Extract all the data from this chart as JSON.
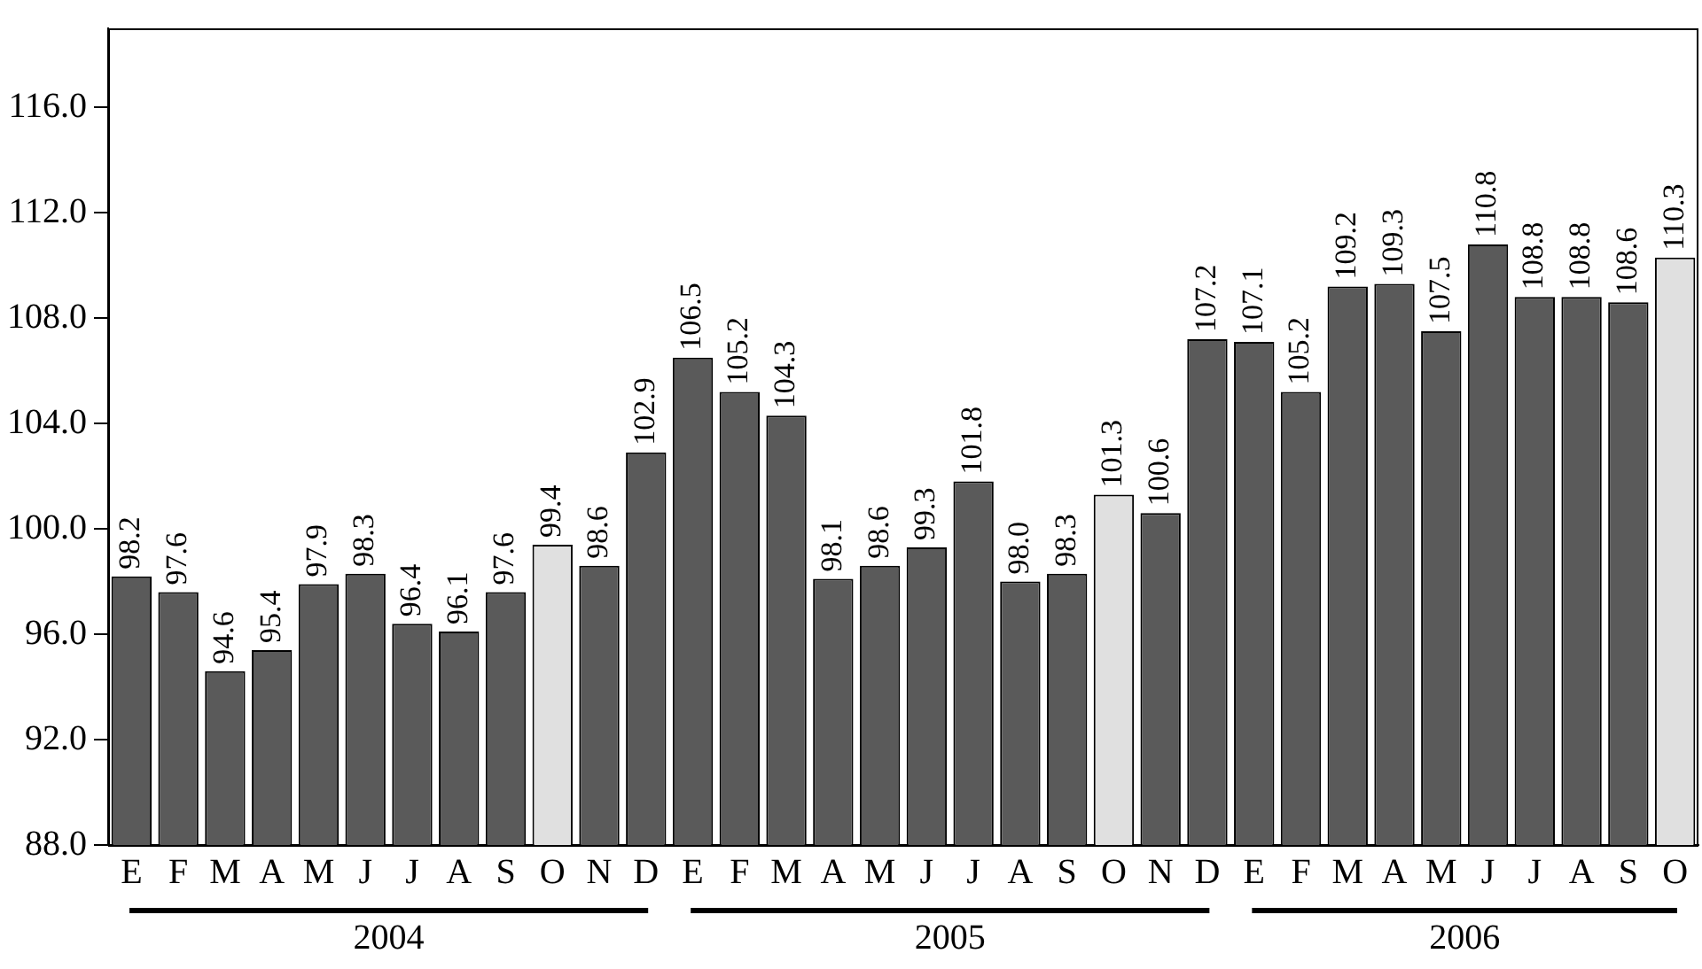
{
  "chart_data": {
    "type": "bar",
    "categories": [
      "E",
      "F",
      "M",
      "A",
      "M",
      "J",
      "J",
      "A",
      "S",
      "O",
      "N",
      "D",
      "E",
      "F",
      "M",
      "A",
      "M",
      "J",
      "J",
      "A",
      "S",
      "O",
      "N",
      "D",
      "E",
      "F",
      "M",
      "A",
      "M",
      "J",
      "J",
      "A",
      "S",
      "O"
    ],
    "values": [
      98.2,
      97.6,
      94.6,
      95.4,
      97.9,
      98.3,
      96.4,
      96.1,
      97.6,
      99.4,
      98.6,
      102.9,
      106.5,
      105.2,
      104.3,
      98.1,
      98.6,
      99.3,
      101.8,
      98.0,
      98.3,
      101.3,
      100.6,
      107.2,
      107.1,
      105.2,
      109.2,
      109.3,
      107.5,
      110.8,
      108.8,
      108.8,
      108.6,
      110.3
    ],
    "value_labels": [
      "98.2",
      "97.6",
      "94.6",
      "95.4",
      "97.9",
      "98.3",
      "96.4",
      "96.1",
      "97.6",
      "99.4",
      "98.6",
      "102.9",
      "106.5",
      "105.2",
      "104.3",
      "98.1",
      "98.6",
      "99.3",
      "101.8",
      "98.0",
      "98.3",
      "101.3",
      "100.6",
      "107.2",
      "107.1",
      "105.2",
      "109.2",
      "109.3",
      "107.5",
      "110.8",
      "108.8",
      "108.8",
      "108.6",
      "110.3"
    ],
    "colors": [
      "#5a5a5a",
      "#5a5a5a",
      "#5a5a5a",
      "#5a5a5a",
      "#5a5a5a",
      "#5a5a5a",
      "#5a5a5a",
      "#5a5a5a",
      "#5a5a5a",
      "#e0e0e0",
      "#5a5a5a",
      "#5a5a5a",
      "#5a5a5a",
      "#5a5a5a",
      "#5a5a5a",
      "#5a5a5a",
      "#5a5a5a",
      "#5a5a5a",
      "#5a5a5a",
      "#5a5a5a",
      "#5a5a5a",
      "#e0e0e0",
      "#5a5a5a",
      "#5a5a5a",
      "#5a5a5a",
      "#5a5a5a",
      "#5a5a5a",
      "#5a5a5a",
      "#5a5a5a",
      "#5a5a5a",
      "#5a5a5a",
      "#5a5a5a",
      "#5a5a5a",
      "#e0e0e0"
    ],
    "ylim": [
      88,
      119
    ],
    "yticks": [
      {
        "value": 88,
        "label": "88.0"
      },
      {
        "value": 92,
        "label": "92.0"
      },
      {
        "value": 96,
        "label": "96.0"
      },
      {
        "value": 100,
        "label": "100.0"
      },
      {
        "value": 104,
        "label": "104.0"
      },
      {
        "value": 108,
        "label": "108.0"
      },
      {
        "value": 112,
        "label": "112.0"
      },
      {
        "value": 116,
        "label": "116.0"
      }
    ],
    "annotations": [
      "2004",
      "2005",
      "2006"
    ],
    "grid": false,
    "legend": false
  }
}
